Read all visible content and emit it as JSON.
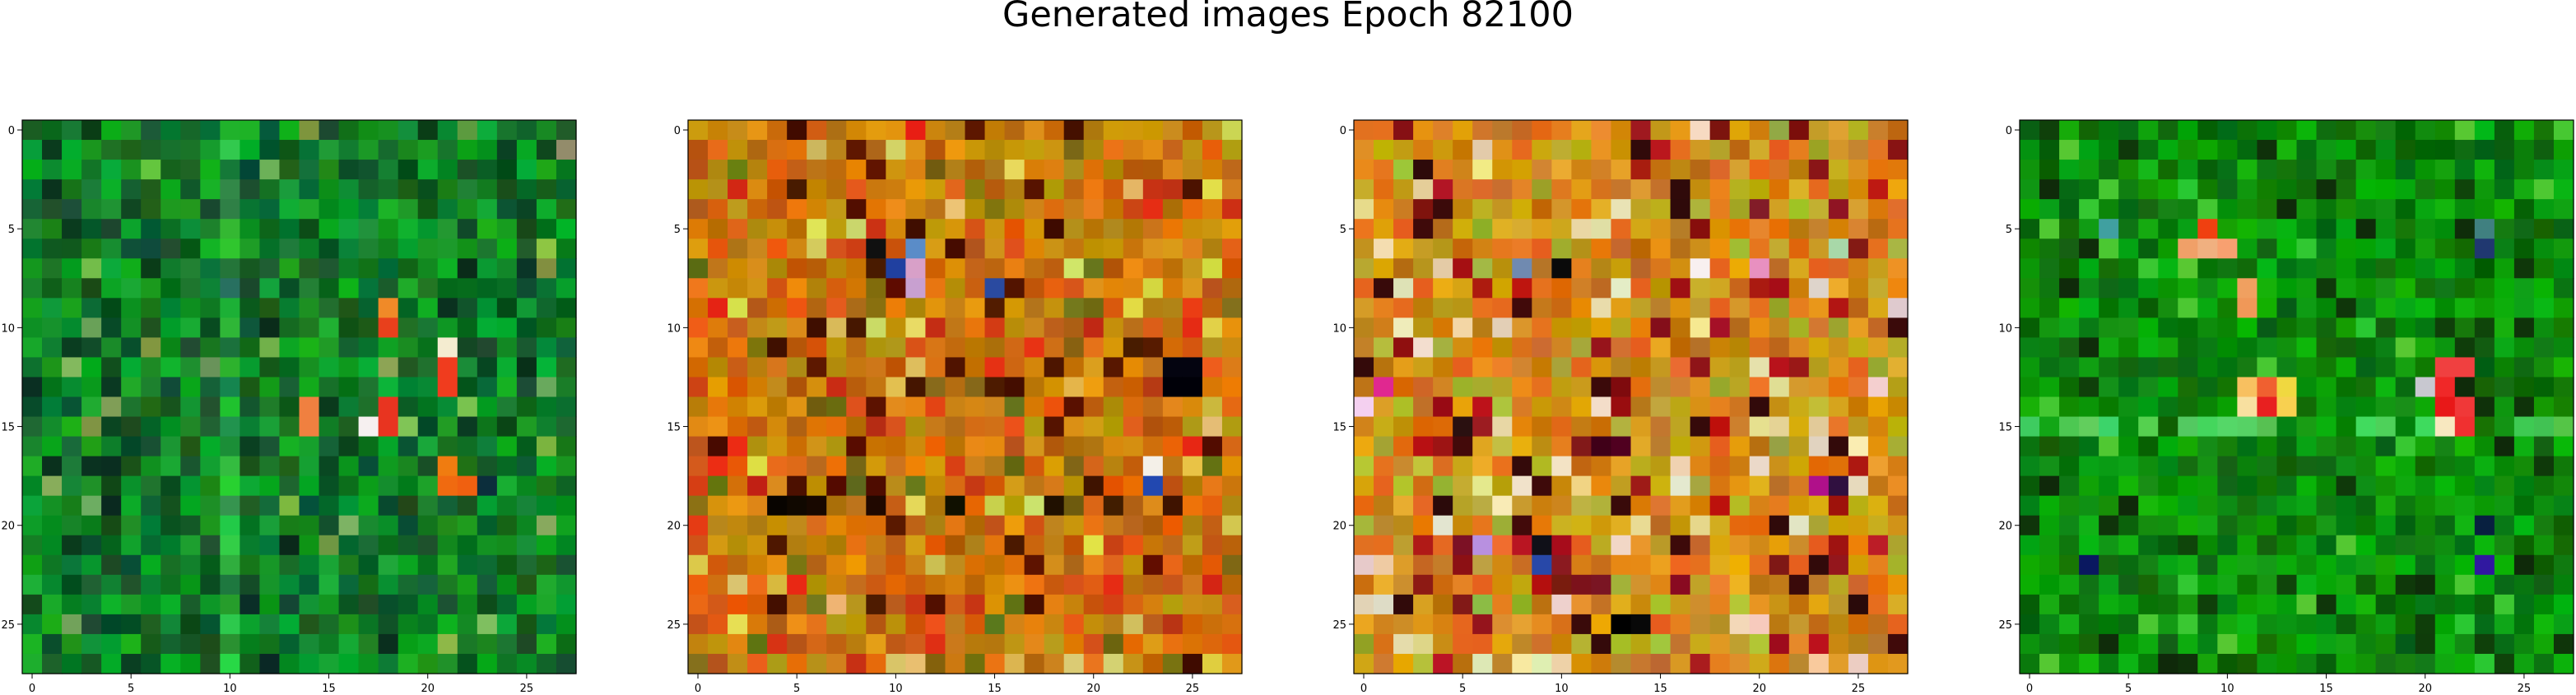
{
  "title": "Generated images Epoch 82100",
  "chart_data": [
    {
      "type": "heatmap",
      "grid_size": [
        28,
        28
      ],
      "palette": "green",
      "xlim": [
        -0.5,
        27.5
      ],
      "ylim": [
        27.5,
        -0.5
      ],
      "xticks": [
        0,
        5,
        10,
        15,
        20,
        25
      ],
      "yticks": [
        0,
        5,
        10,
        15,
        20,
        25
      ],
      "xtick_labels": [
        "0",
        "5",
        "10",
        "15",
        "20",
        "25"
      ],
      "ytick_labels": [
        "0",
        "5",
        "10",
        "15",
        "20",
        "25"
      ],
      "highlights": [
        {
          "r": 9,
          "c": 18,
          "color": "#f08a28"
        },
        {
          "r": 10,
          "c": 18,
          "color": "#e8401c"
        },
        {
          "r": 11,
          "c": 21,
          "color": "#f4ecd0"
        },
        {
          "r": 12,
          "c": 21,
          "color": "#f03c1e"
        },
        {
          "r": 13,
          "c": 21,
          "color": "#f03c1e"
        },
        {
          "r": 14,
          "c": 14,
          "color": "#f08040"
        },
        {
          "r": 15,
          "c": 14,
          "color": "#f08040"
        },
        {
          "r": 14,
          "c": 18,
          "color": "#e83420"
        },
        {
          "r": 15,
          "c": 17,
          "color": "#f6f0f0"
        },
        {
          "r": 15,
          "c": 18,
          "color": "#e83420"
        },
        {
          "r": 17,
          "c": 21,
          "color": "#f07c10"
        },
        {
          "r": 18,
          "c": 21,
          "color": "#f06a10"
        },
        {
          "r": 18,
          "c": 22,
          "color": "#f06010"
        },
        {
          "r": 18,
          "c": 23,
          "color": "#0c2e3c"
        },
        {
          "r": 8,
          "c": 10,
          "color": "#287060"
        },
        {
          "r": 12,
          "c": 25,
          "color": "#083018"
        }
      ]
    },
    {
      "type": "heatmap",
      "grid_size": [
        28,
        28
      ],
      "palette": "orange",
      "xlim": [
        -0.5,
        27.5
      ],
      "ylim": [
        27.5,
        -0.5
      ],
      "xticks": [
        0,
        5,
        10,
        15,
        20,
        25
      ],
      "yticks": [
        0,
        5,
        10,
        15,
        20,
        25
      ],
      "xtick_labels": [
        "0",
        "5",
        "10",
        "15",
        "20",
        "25"
      ],
      "ytick_labels": [
        "0",
        "5",
        "10",
        "15",
        "20",
        "25"
      ],
      "highlights": [
        {
          "r": 6,
          "c": 9,
          "color": "#101010"
        },
        {
          "r": 6,
          "c": 11,
          "color": "#5a8cc8"
        },
        {
          "r": 7,
          "c": 10,
          "color": "#2040a0"
        },
        {
          "r": 7,
          "c": 11,
          "color": "#d8a0c8"
        },
        {
          "r": 8,
          "c": 11,
          "color": "#c8a0d0"
        },
        {
          "r": 8,
          "c": 15,
          "color": "#2a4aa0"
        },
        {
          "r": 12,
          "c": 24,
          "color": "#040410"
        },
        {
          "r": 12,
          "c": 25,
          "color": "#040410"
        },
        {
          "r": 13,
          "c": 24,
          "color": "#000008"
        },
        {
          "r": 13,
          "c": 25,
          "color": "#000008"
        },
        {
          "r": 17,
          "c": 23,
          "color": "#f4f0e8"
        },
        {
          "r": 18,
          "c": 23,
          "color": "#2248b0"
        },
        {
          "r": 19,
          "c": 4,
          "color": "#080400"
        },
        {
          "r": 19,
          "c": 5,
          "color": "#100800"
        },
        {
          "r": 19,
          "c": 6,
          "color": "#180800"
        },
        {
          "r": 19,
          "c": 9,
          "color": "#200800"
        },
        {
          "r": 19,
          "c": 13,
          "color": "#101000"
        },
        {
          "r": 19,
          "c": 18,
          "color": "#201000"
        }
      ]
    },
    {
      "type": "heatmap",
      "grid_size": [
        28,
        28
      ],
      "palette": "multi",
      "xlim": [
        -0.5,
        27.5
      ],
      "ylim": [
        27.5,
        -0.5
      ],
      "xticks": [
        0,
        5,
        10,
        15,
        20,
        25
      ],
      "yticks": [
        0,
        5,
        10,
        15,
        20,
        25
      ],
      "xtick_labels": [
        "0",
        "5",
        "10",
        "15",
        "20",
        "25"
      ],
      "ytick_labels": [
        "0",
        "5",
        "10",
        "15",
        "20",
        "25"
      ],
      "highlights": [
        {
          "r": 7,
          "c": 10,
          "color": "#0a0a0a"
        },
        {
          "r": 7,
          "c": 8,
          "color": "#708ab0"
        },
        {
          "r": 7,
          "c": 17,
          "color": "#f8f0f0"
        },
        {
          "r": 7,
          "c": 20,
          "color": "#e890c0"
        },
        {
          "r": 6,
          "c": 24,
          "color": "#a8d8a8"
        },
        {
          "r": 14,
          "c": 0,
          "color": "#f4d0f0"
        },
        {
          "r": 13,
          "c": 1,
          "color": "#e02890"
        },
        {
          "r": 15,
          "c": 5,
          "color": "#2a1010"
        },
        {
          "r": 18,
          "c": 23,
          "color": "#b0108a"
        },
        {
          "r": 18,
          "c": 24,
          "color": "#301040"
        },
        {
          "r": 21,
          "c": 6,
          "color": "#b890e0"
        },
        {
          "r": 21,
          "c": 9,
          "color": "#101018"
        },
        {
          "r": 22,
          "c": 9,
          "color": "#2848a8"
        },
        {
          "r": 25,
          "c": 13,
          "color": "#000000"
        },
        {
          "r": 25,
          "c": 14,
          "color": "#080808"
        },
        {
          "r": 16,
          "c": 12,
          "color": "#400018"
        },
        {
          "r": 16,
          "c": 13,
          "color": "#500020"
        }
      ]
    },
    {
      "type": "heatmap",
      "grid_size": [
        28,
        28
      ],
      "palette": "deepgreen",
      "xlim": [
        -0.5,
        27.5
      ],
      "ylim": [
        27.5,
        -0.5
      ],
      "xticks": [
        0,
        5,
        10,
        15,
        20,
        25
      ],
      "yticks": [
        0,
        5,
        10,
        15,
        20,
        25
      ],
      "xtick_labels": [
        "0",
        "5",
        "10",
        "15",
        "20",
        "25"
      ],
      "ytick_labels": [
        "0",
        "5",
        "10",
        "15",
        "20",
        "25"
      ],
      "highlights": [
        {
          "r": 5,
          "c": 9,
          "color": "#f04010"
        },
        {
          "r": 6,
          "c": 8,
          "color": "#f0a068"
        },
        {
          "r": 6,
          "c": 9,
          "color": "#f0b080"
        },
        {
          "r": 6,
          "c": 10,
          "color": "#f8a070"
        },
        {
          "r": 8,
          "c": 11,
          "color": "#f0a060"
        },
        {
          "r": 9,
          "c": 11,
          "color": "#f09858"
        },
        {
          "r": 12,
          "c": 21,
          "color": "#f04040"
        },
        {
          "r": 12,
          "c": 22,
          "color": "#f04040"
        },
        {
          "r": 13,
          "c": 11,
          "color": "#f8c060"
        },
        {
          "r": 13,
          "c": 12,
          "color": "#f06030"
        },
        {
          "r": 13,
          "c": 13,
          "color": "#f0d840"
        },
        {
          "r": 14,
          "c": 11,
          "color": "#f8e0a0"
        },
        {
          "r": 14,
          "c": 12,
          "color": "#e82020"
        },
        {
          "r": 14,
          "c": 13,
          "color": "#f8d050"
        },
        {
          "r": 13,
          "c": 20,
          "color": "#c8c8d0"
        },
        {
          "r": 13,
          "c": 21,
          "color": "#f02828"
        },
        {
          "r": 14,
          "c": 21,
          "color": "#e81818"
        },
        {
          "r": 14,
          "c": 22,
          "color": "#f03838"
        },
        {
          "r": 15,
          "c": 21,
          "color": "#f8e8c0"
        },
        {
          "r": 15,
          "c": 22,
          "color": "#f03030"
        },
        {
          "r": 22,
          "c": 3,
          "color": "#0a1860"
        },
        {
          "r": 22,
          "c": 23,
          "color": "#3018a0"
        },
        {
          "r": 20,
          "c": 23,
          "color": "#082040"
        },
        {
          "r": 5,
          "c": 4,
          "color": "#40a0a0"
        },
        {
          "r": 5,
          "c": 23,
          "color": "#408080"
        },
        {
          "r": 6,
          "c": 23,
          "color": "#203870"
        }
      ]
    }
  ]
}
